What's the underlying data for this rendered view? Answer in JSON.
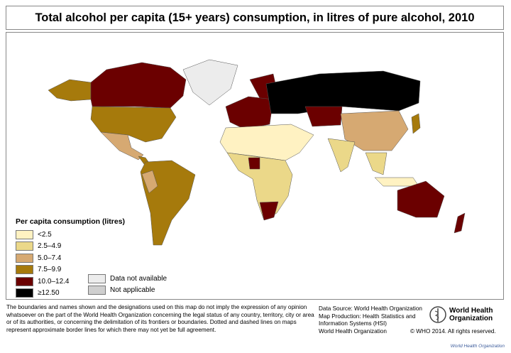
{
  "title": "Total alcohol per capita (15+ years) consumption, in litres of pure alcohol, 2010",
  "colors": {
    "lt2_5": "#fff2c2",
    "c2_5_4_9": "#ebd889",
    "c5_0_7_4": "#d6a972",
    "c7_5_9_9": "#a67a0c",
    "c10_12_4": "#6b0000",
    "ge12_5": "#000000",
    "not_available": "#ececec",
    "not_applicable": "#cfcfcf",
    "ocean": "#ffffff"
  },
  "legend": {
    "title": "Per capita consumption (litres)",
    "items": [
      {
        "label": "<2.5",
        "color": "#fff2c2"
      },
      {
        "label": "2.5–4.9",
        "color": "#ebd889"
      },
      {
        "label": "5.0–7.4",
        "color": "#d6a972"
      },
      {
        "label": "7.5–9.9",
        "color": "#a67a0c"
      },
      {
        "label": "10.0–12.4",
        "color": "#6b0000"
      },
      {
        "label": "≥12.50",
        "color": "#000000"
      }
    ],
    "other": [
      {
        "label": "Data not available",
        "color": "#ececec"
      },
      {
        "label": "Not applicable",
        "color": "#cfcfcf"
      }
    ]
  },
  "footer": {
    "disclaimer": "The boundaries and names shown and the designations used on this map do not imply the expression of any opinion whatsoever on the part of the World Health Organization concerning the legal status of any country, territory, city or area or of its authorities, or concerning the delimitation of its frontiers or boundaries. Dotted and dashed lines on maps represent approximate border lines for which there may not yet be full agreement.",
    "source_lines": [
      "Data Source: World Health Organization",
      "Map Production: Health Statistics and",
      "Information Systems (HSI)",
      "World Health Organization"
    ],
    "logo_text": [
      "World Health",
      "Organization"
    ],
    "logo_icon": "who-emblem-icon",
    "copyright": "© WHO 2014. All rights reserved.",
    "bottom_link": "World Health Organization"
  }
}
